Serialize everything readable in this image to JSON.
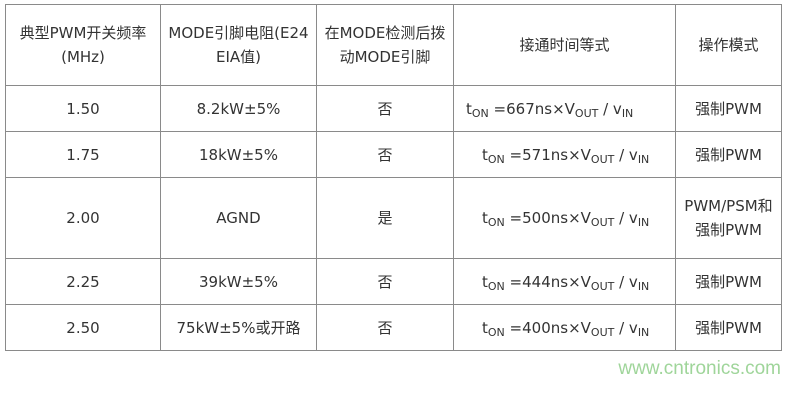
{
  "headers": [
    "典型PWM开关频率(MHz)",
    "MODE引脚电阻(E24 EIA值)",
    "在MODE检测后拨动MODE引脚",
    "接通时间等式",
    "操作模式"
  ],
  "rows": [
    {
      "freq": "1.50",
      "resistor": "8.2kW±5%",
      "toggle": "否",
      "t": "t",
      "on": "ON",
      "eq": " =667ns×V",
      "out": "OUT",
      "div": " / v",
      "in": "IN",
      "mode": "强制PWM"
    },
    {
      "freq": "1.75",
      "resistor": "18kW±5%",
      "toggle": "否",
      "t": "t",
      "on": "ON",
      "eq": " =571ns×V",
      "out": "OUT",
      "div": " / v",
      "in": "IN",
      "mode": "强制PWM"
    },
    {
      "freq": "2.00",
      "resistor": "AGND",
      "toggle": "是",
      "t": "t",
      "on": "ON",
      "eq": " =500ns×V",
      "out": "OUT",
      "div": " / v",
      "in": "IN",
      "mode": "PWM/PSM和强制PWM"
    },
    {
      "freq": "2.25",
      "resistor": "39kW±5%",
      "toggle": "否",
      "t": "t",
      "on": "ON",
      "eq": " =444ns×V",
      "out": "OUT",
      "div": " / v",
      "in": "IN",
      "mode": "强制PWM"
    },
    {
      "freq": "2.50",
      "resistor": "75kW±5%或开路",
      "toggle": "否",
      "t": "t",
      "on": "ON",
      "eq": " =400ns×V",
      "out": "OUT",
      "div": " / v",
      "in": "IN",
      "mode": "强制PWM"
    }
  ],
  "watermark": "www.cntronics.com"
}
